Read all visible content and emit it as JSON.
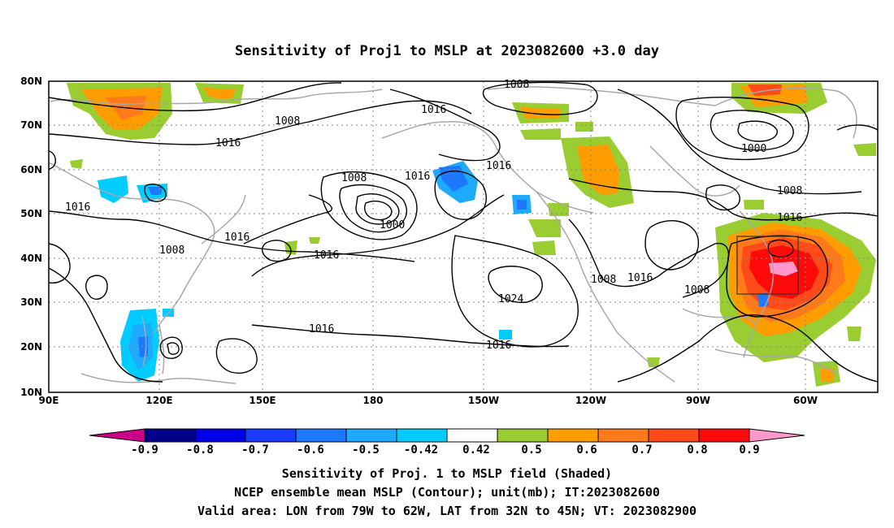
{
  "title": "Sensitivity of Proj1 to MSLP at 2023082600 +3.0 day",
  "map": {
    "lon_ticks": [
      "90E",
      "120E",
      "150E",
      "180",
      "150W",
      "120W",
      "90W",
      "60W"
    ],
    "lat_ticks": [
      "80N",
      "70N",
      "60N",
      "50N",
      "40N",
      "30N",
      "20N",
      "10N"
    ],
    "contour_labels": [
      "1008",
      "1016",
      "1016",
      "1008",
      "1016",
      "1016",
      "1008",
      "1016",
      "1008",
      "1016",
      "1016",
      "1000",
      "1000",
      "1024",
      "1016",
      "1016",
      "1008",
      "1016",
      "1008",
      "1008",
      "1016"
    ]
  },
  "colorbar": {
    "labels": [
      "-0.9",
      "-0.8",
      "-0.7",
      "-0.6",
      "-0.5",
      "-0.42",
      "0.42",
      "0.5",
      "0.6",
      "0.7",
      "0.8",
      "0.9"
    ],
    "colors": [
      "#00008b",
      "#0000e6",
      "#1a3cff",
      "#1e78ff",
      "#1eaaff",
      "#00ccff",
      "#ffffff",
      "#9acd32",
      "#ff9c00",
      "#ff7a1a",
      "#ff4a1a",
      "#ff0a0a"
    ],
    "low_color": "#cc0088",
    "high_color": "#ff99cc"
  },
  "caption": {
    "line1": "Sensitivity of Proj. 1 to MSLP field (Shaded)",
    "line2": "NCEP ensemble mean MSLP (Contour); unit(mb); IT:2023082600",
    "line3": "Valid area: LON from 79W to 62W, LAT from 32N to 45N; VT: 2023082900"
  }
}
